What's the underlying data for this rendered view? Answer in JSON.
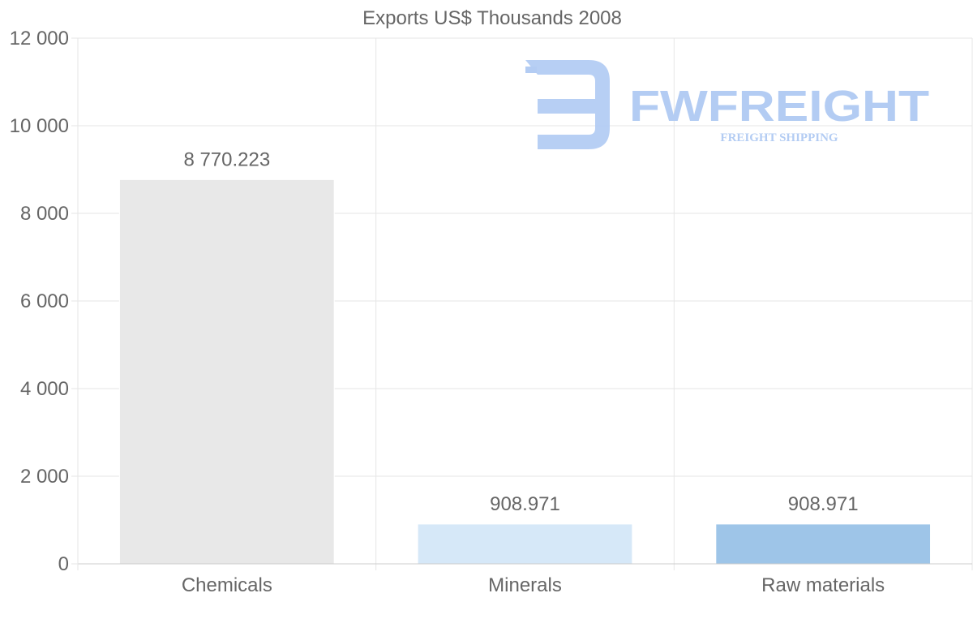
{
  "chart_data": {
    "type": "bar",
    "title": "Exports US$ Thousands 2008",
    "xlabel": "",
    "ylabel": "",
    "categories": [
      "Chemicals",
      "Minerals",
      "Raw materials"
    ],
    "values": [
      8770.223,
      908.971,
      908.971
    ],
    "data_labels": [
      "8 770.223",
      "908.971",
      "908.971"
    ],
    "bar_colors": [
      "#e8e8e8",
      "#d6e8f8",
      "#9ec5e8"
    ],
    "ylim": [
      0,
      12000
    ],
    "y_ticks": [
      0,
      2000,
      4000,
      6000,
      8000,
      10000,
      12000
    ],
    "y_tick_labels": [
      "0",
      "2 000",
      "4 000",
      "6 000",
      "8 000",
      "10 000",
      "12 000"
    ],
    "grid": true,
    "legend": "none"
  },
  "watermark": {
    "name": "FWFREIGHT",
    "tagline": "FREIGHT SHIPPING",
    "color": "#b3ccf3"
  },
  "colors": {
    "grid": "#e6e6e6",
    "axis": "#cccccc",
    "text": "#666666"
  }
}
